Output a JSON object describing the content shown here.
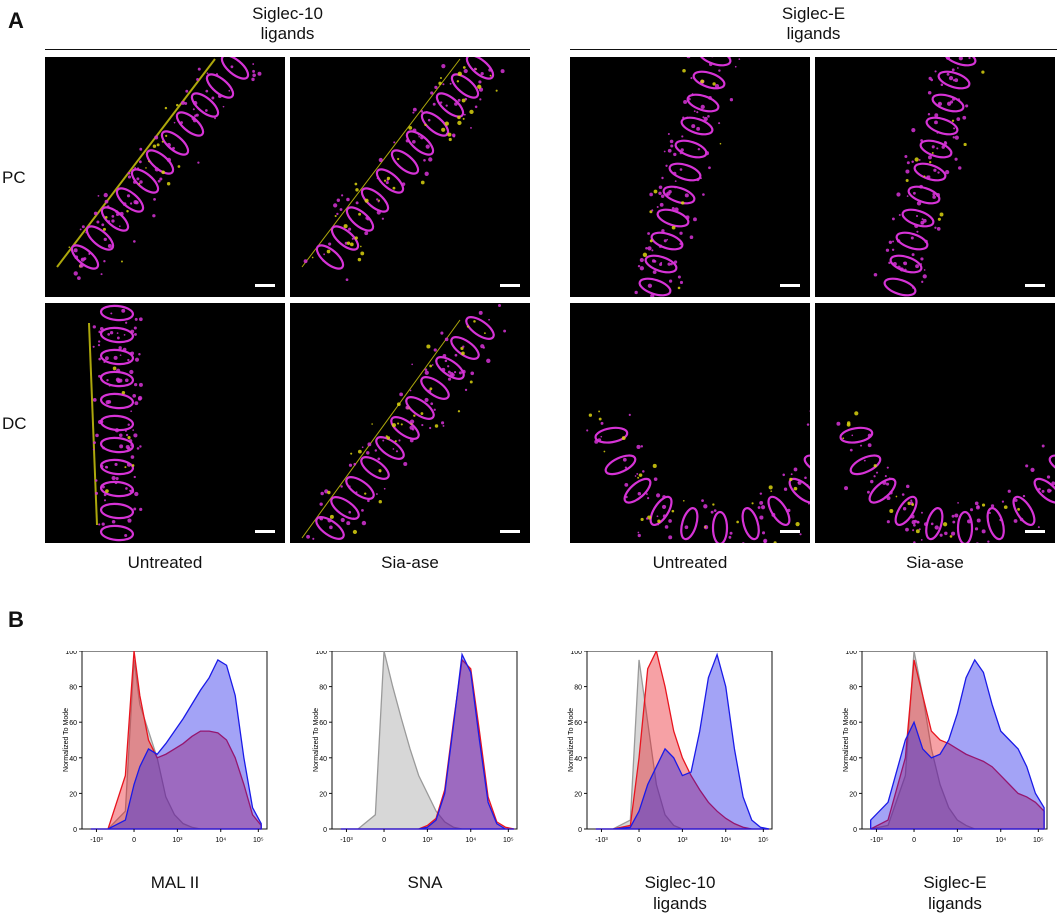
{
  "panel_a": {
    "letter": "A",
    "groups": [
      {
        "title": "Siglec-10\nligands"
      },
      {
        "title": "Siglec-E\nligands"
      }
    ],
    "row_labels": [
      "PC",
      "DC"
    ],
    "col_labels": [
      "Untreated",
      "Sia-ase",
      "Untreated",
      "Sia-ase"
    ],
    "colors": {
      "magenta": "#d633d6",
      "yellow": "#d9d20f",
      "background": "#000000"
    }
  },
  "panel_b": {
    "letter": "B",
    "y_axis_label": "Normalized To Mode",
    "y_ticks": [
      "0",
      "20",
      "40",
      "60",
      "80",
      "100"
    ],
    "x_ticks": [
      "-10³",
      "0",
      "10³",
      "10⁴",
      "10⁵"
    ],
    "colors": {
      "control": "#9a9a9a",
      "red": "#e8141e",
      "blue": "#1a1ae8"
    }
  },
  "chart_data": [
    {
      "type": "area",
      "title": "MAL II",
      "ylabel": "Normalized To Mode",
      "ylim": [
        0,
        100
      ],
      "x_ticks": [
        "-10³",
        "0",
        "10³",
        "10⁴",
        "10⁵"
      ],
      "x": [
        -1.5,
        -0.9,
        -0.3,
        0.0,
        0.2,
        0.5,
        0.8,
        1.1,
        1.4,
        1.7,
        2.0,
        2.3,
        2.6,
        2.9,
        3.2,
        3.5,
        3.8,
        4.1,
        4.4
      ],
      "series": [
        {
          "color": "gray",
          "values": [
            0,
            0,
            10,
            95,
            70,
            55,
            40,
            18,
            8,
            3,
            1,
            0,
            0,
            0,
            0,
            0,
            0,
            0,
            0
          ]
        },
        {
          "color": "red",
          "values": [
            0,
            0,
            30,
            100,
            75,
            50,
            40,
            42,
            45,
            48,
            52,
            55,
            55,
            54,
            50,
            40,
            25,
            8,
            2
          ]
        },
        {
          "color": "blue",
          "values": [
            0,
            0,
            5,
            25,
            35,
            45,
            42,
            48,
            55,
            62,
            70,
            78,
            85,
            95,
            92,
            75,
            40,
            12,
            3
          ]
        }
      ]
    },
    {
      "type": "area",
      "title": "SNA",
      "ylabel": "Normalized To Mode",
      "ylim": [
        0,
        100
      ],
      "x_ticks": [
        "-10³",
        "0",
        "10³",
        "10⁴",
        "10⁵"
      ],
      "x": [
        -1.5,
        -0.9,
        -0.3,
        0.0,
        0.3,
        0.6,
        0.9,
        1.2,
        1.5,
        1.8,
        2.1,
        2.4,
        2.7,
        3.0,
        3.3,
        3.6,
        3.9,
        4.2,
        4.5
      ],
      "series": [
        {
          "color": "gray",
          "values": [
            0,
            0,
            8,
            100,
            80,
            62,
            45,
            30,
            20,
            10,
            4,
            1,
            0,
            0,
            0,
            0,
            0,
            0,
            0
          ]
        },
        {
          "color": "red",
          "values": [
            0,
            0,
            0,
            0,
            0,
            0,
            0,
            0,
            2,
            6,
            22,
            60,
            95,
            90,
            55,
            18,
            4,
            1,
            0
          ]
        },
        {
          "color": "blue",
          "values": [
            0,
            0,
            0,
            0,
            0,
            0,
            0,
            0,
            1,
            5,
            20,
            58,
            98,
            88,
            50,
            15,
            3,
            0,
            0
          ]
        }
      ]
    },
    {
      "type": "area",
      "title": "Siglec-10\nligands",
      "ylabel": "Normalized To Mode",
      "ylim": [
        0,
        100
      ],
      "x_ticks": [
        "-10³",
        "0",
        "10³",
        "10⁴",
        "10⁵"
      ],
      "x": [
        -1.5,
        -0.9,
        -0.3,
        0.0,
        0.3,
        0.6,
        0.9,
        1.2,
        1.5,
        1.8,
        2.1,
        2.4,
        2.7,
        3.0,
        3.3,
        3.6,
        3.9,
        4.2,
        4.5
      ],
      "series": [
        {
          "color": "gray",
          "values": [
            0,
            0,
            5,
            95,
            60,
            25,
            8,
            2,
            0,
            0,
            0,
            0,
            0,
            0,
            0,
            0,
            0,
            0,
            0
          ]
        },
        {
          "color": "red",
          "values": [
            0,
            0,
            2,
            40,
            90,
            100,
            80,
            55,
            40,
            30,
            22,
            15,
            10,
            6,
            3,
            1,
            0,
            0,
            0
          ]
        },
        {
          "color": "blue",
          "values": [
            0,
            0,
            1,
            10,
            25,
            35,
            45,
            40,
            30,
            32,
            55,
            85,
            98,
            80,
            45,
            18,
            5,
            1,
            0
          ]
        }
      ]
    },
    {
      "type": "area",
      "title": "Siglec-E\nligands",
      "ylabel": "Normalized To Mode",
      "ylim": [
        0,
        100
      ],
      "x_ticks": [
        "-10³",
        "0",
        "10³",
        "10⁴",
        "10⁵"
      ],
      "x": [
        -1.5,
        -0.9,
        -0.3,
        0.0,
        0.3,
        0.6,
        0.9,
        1.2,
        1.5,
        1.8,
        2.1,
        2.4,
        2.7,
        3.0,
        3.3,
        3.6,
        3.9,
        4.2,
        4.5
      ],
      "series": [
        {
          "color": "gray",
          "values": [
            0,
            2,
            30,
            100,
            75,
            45,
            25,
            12,
            5,
            2,
            0,
            0,
            0,
            0,
            0,
            0,
            0,
            0,
            0
          ]
        },
        {
          "color": "red",
          "values": [
            0,
            5,
            40,
            95,
            75,
            55,
            50,
            48,
            45,
            42,
            40,
            38,
            35,
            30,
            25,
            20,
            18,
            15,
            10
          ]
        },
        {
          "color": "blue",
          "values": [
            5,
            15,
            50,
            60,
            45,
            40,
            42,
            50,
            65,
            85,
            95,
            88,
            70,
            55,
            50,
            45,
            35,
            20,
            12
          ]
        }
      ]
    }
  ]
}
